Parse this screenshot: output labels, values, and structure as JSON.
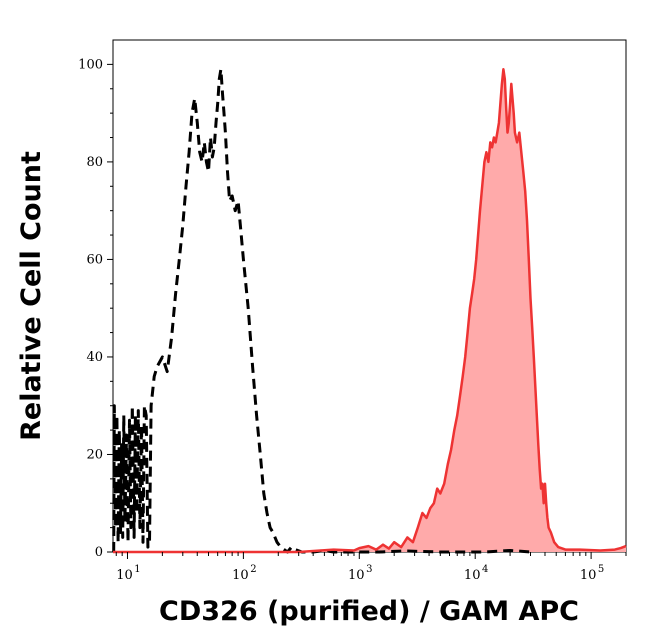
{
  "chart_data": {
    "type": "area",
    "xlabel": "CD326 (purified) / GAM APC",
    "ylabel": "Relative Cell Count",
    "x_scale": "log",
    "xlim": [
      7.5,
      200000
    ],
    "ylim": [
      0,
      105
    ],
    "x_ticks": [
      {
        "base": "10",
        "exp": "1",
        "value": 10
      },
      {
        "base": "10",
        "exp": "2",
        "value": 100
      },
      {
        "base": "10",
        "exp": "3",
        "value": 1000
      },
      {
        "base": "10",
        "exp": "4",
        "value": 10000
      },
      {
        "base": "10",
        "exp": "5",
        "value": 100000
      }
    ],
    "y_ticks": [
      "0",
      "20",
      "40",
      "60",
      "80",
      "100"
    ],
    "grid": false,
    "legend": "none",
    "series": [
      {
        "style": "dashed-outline",
        "color": "#000000",
        "points": [
          [
            7.6,
            0
          ],
          [
            7.7,
            30
          ],
          [
            7.9,
            5
          ],
          [
            8.1,
            28
          ],
          [
            8.3,
            2
          ],
          [
            8.5,
            25
          ],
          [
            8.7,
            4
          ],
          [
            8.9,
            22
          ],
          [
            9.1,
            3
          ],
          [
            9.3,
            28
          ],
          [
            9.5,
            6
          ],
          [
            9.8,
            24
          ],
          [
            10.1,
            2
          ],
          [
            10.4,
            27
          ],
          [
            10.7,
            5
          ],
          [
            11.0,
            30
          ],
          [
            11.4,
            3
          ],
          [
            11.7,
            28
          ],
          [
            12.0,
            8
          ],
          [
            12.4,
            29
          ],
          [
            12.8,
            5
          ],
          [
            13.2,
            26
          ],
          [
            13.6,
            2
          ],
          [
            14.0,
            30
          ],
          [
            14.5,
            28
          ],
          [
            15.0,
            1
          ],
          [
            15.5,
            2
          ],
          [
            16,
            30
          ],
          [
            17,
            36
          ],
          [
            18,
            38
          ],
          [
            20,
            40
          ],
          [
            22,
            37
          ],
          [
            24,
            44
          ],
          [
            26,
            53
          ],
          [
            28,
            60
          ],
          [
            30,
            67
          ],
          [
            32,
            75
          ],
          [
            34,
            82
          ],
          [
            36,
            90
          ],
          [
            38,
            93
          ],
          [
            40,
            88
          ],
          [
            42,
            82
          ],
          [
            44,
            80
          ],
          [
            46,
            84
          ],
          [
            48,
            80
          ],
          [
            50,
            78
          ],
          [
            52,
            85
          ],
          [
            54,
            81
          ],
          [
            56,
            83
          ],
          [
            58,
            88
          ],
          [
            60,
            92
          ],
          [
            62,
            97
          ],
          [
            64,
            99
          ],
          [
            66,
            94
          ],
          [
            68,
            90
          ],
          [
            70,
            86
          ],
          [
            73,
            78
          ],
          [
            76,
            72
          ],
          [
            80,
            73
          ],
          [
            85,
            70
          ],
          [
            90,
            72
          ],
          [
            95,
            66
          ],
          [
            100,
            60
          ],
          [
            110,
            50
          ],
          [
            120,
            38
          ],
          [
            130,
            28
          ],
          [
            140,
            20
          ],
          [
            150,
            12
          ],
          [
            160,
            8
          ],
          [
            170,
            5
          ],
          [
            180,
            4
          ],
          [
            195,
            2
          ],
          [
            210,
            1
          ],
          [
            240,
            0
          ],
          [
            260,
            1
          ],
          [
            280,
            0.5
          ],
          [
            320,
            0
          ],
          [
            400,
            0
          ],
          [
            500,
            0.3
          ],
          [
            600,
            0
          ],
          [
            1500,
            0
          ],
          [
            2500,
            0.2
          ],
          [
            5000,
            0
          ],
          [
            12000,
            0
          ],
          [
            20000,
            0.3
          ],
          [
            30000,
            0
          ]
        ]
      },
      {
        "style": "filled",
        "color": "#ee3333",
        "fill": "#ffaaaa",
        "points": [
          [
            7.5,
            0
          ],
          [
            300,
            0
          ],
          [
            600,
            0.5
          ],
          [
            900,
            0.3
          ],
          [
            1000,
            0.8
          ],
          [
            1200,
            1.2
          ],
          [
            1400,
            0.5
          ],
          [
            1600,
            1.5
          ],
          [
            1800,
            0.7
          ],
          [
            2000,
            2
          ],
          [
            2300,
            1
          ],
          [
            2600,
            3
          ],
          [
            2900,
            2
          ],
          [
            3200,
            5
          ],
          [
            3500,
            8
          ],
          [
            3800,
            7
          ],
          [
            4100,
            9
          ],
          [
            4400,
            10
          ],
          [
            4700,
            13
          ],
          [
            5000,
            12
          ],
          [
            5400,
            14
          ],
          [
            5800,
            18
          ],
          [
            6200,
            21
          ],
          [
            6600,
            25
          ],
          [
            7000,
            28
          ],
          [
            7400,
            32
          ],
          [
            7800,
            36
          ],
          [
            8200,
            40
          ],
          [
            8600,
            45
          ],
          [
            9000,
            50
          ],
          [
            9400,
            53
          ],
          [
            9800,
            56
          ],
          [
            10200,
            60
          ],
          [
            10600,
            65
          ],
          [
            11000,
            70
          ],
          [
            11500,
            75
          ],
          [
            12000,
            80
          ],
          [
            12500,
            82
          ],
          [
            13000,
            80
          ],
          [
            13500,
            84
          ],
          [
            14000,
            83
          ],
          [
            14500,
            85
          ],
          [
            15000,
            84
          ],
          [
            15500,
            86
          ],
          [
            16000,
            88
          ],
          [
            16500,
            92
          ],
          [
            17000,
            96
          ],
          [
            17500,
            99
          ],
          [
            18000,
            97
          ],
          [
            18500,
            91
          ],
          [
            19000,
            86
          ],
          [
            19500,
            88
          ],
          [
            20000,
            92
          ],
          [
            20500,
            96
          ],
          [
            21000,
            93
          ],
          [
            21500,
            90
          ],
          [
            22000,
            86
          ],
          [
            23000,
            84
          ],
          [
            24000,
            86
          ],
          [
            25000,
            82
          ],
          [
            26000,
            78
          ],
          [
            27000,
            74
          ],
          [
            28000,
            68
          ],
          [
            29000,
            60
          ],
          [
            30000,
            52
          ],
          [
            31000,
            46
          ],
          [
            32000,
            40
          ],
          [
            33000,
            34
          ],
          [
            34000,
            28
          ],
          [
            35000,
            22
          ],
          [
            36000,
            17
          ],
          [
            37000,
            13
          ],
          [
            38000,
            14
          ],
          [
            39000,
            10
          ],
          [
            40000,
            14
          ],
          [
            41000,
            10
          ],
          [
            42000,
            7
          ],
          [
            43000,
            5
          ],
          [
            45000,
            4
          ],
          [
            48000,
            2
          ],
          [
            52000,
            1
          ],
          [
            60000,
            0.5
          ],
          [
            80000,
            0.5
          ],
          [
            120000,
            0.3
          ],
          [
            160000,
            0.5
          ],
          [
            180000,
            0.8
          ],
          [
            190000,
            1
          ],
          [
            200000,
            1.2
          ]
        ]
      }
    ]
  }
}
